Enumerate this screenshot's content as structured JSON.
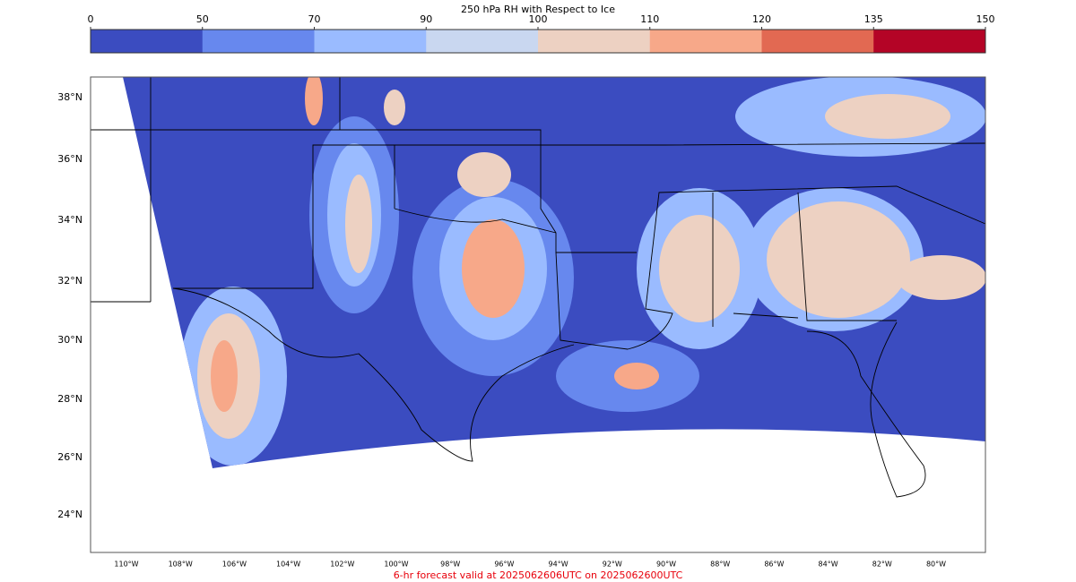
{
  "colorbar": {
    "title": "250 hPa RH with Respect to Ice",
    "levels": [
      0,
      50,
      70,
      90,
      100,
      110,
      120,
      135,
      150
    ],
    "colors": [
      "#3b4cc0",
      "#6788ee",
      "#9abbff",
      "#c9d7f0",
      "#edd1c2",
      "#f7a889",
      "#e26952",
      "#b40426"
    ]
  },
  "map": {
    "lat_labels": [
      "38°N",
      "36°N",
      "34°N",
      "32°N",
      "30°N",
      "28°N",
      "26°N",
      "24°N"
    ],
    "lon_labels": [
      "110°W",
      "108°W",
      "106°W",
      "104°W",
      "102°W",
      "100°W",
      "98°W",
      "96°W",
      "94°W",
      "92°W",
      "90°W",
      "88°W",
      "86°W",
      "84°W",
      "82°W",
      "80°W"
    ]
  },
  "footer": "6-hr forecast valid at 2025062606UTC on 2025062600UTC"
}
